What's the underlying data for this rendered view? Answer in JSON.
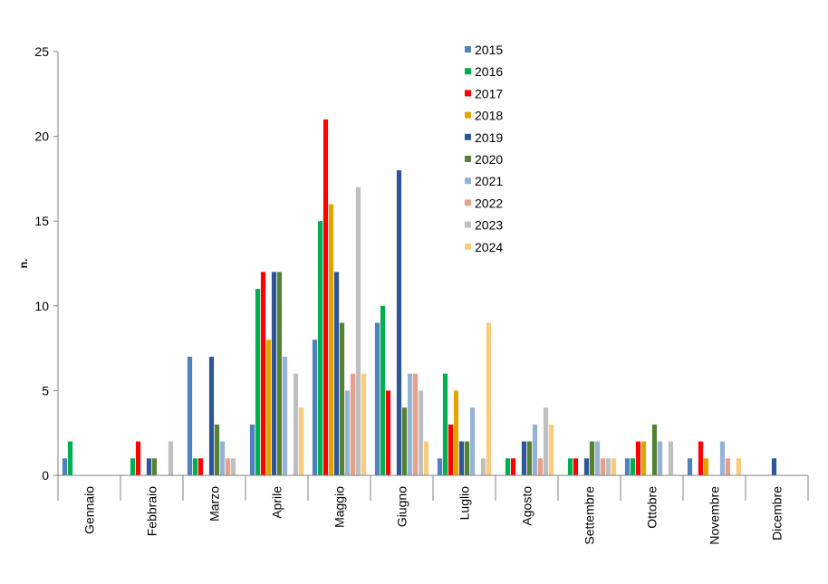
{
  "chart_data": {
    "type": "bar",
    "title": "",
    "xlabel": "",
    "ylabel": "n.",
    "ylim": [
      0,
      25
    ],
    "yticks": [
      "0",
      "5",
      "10",
      "15",
      "20",
      "25"
    ],
    "grid": false,
    "legend_position": "top-center",
    "categories": [
      "Gennaio",
      "Febbraio",
      "Marzo",
      "Aprile",
      "Maggio",
      "Giugno",
      "Luglio",
      "Agosto",
      "Settembre",
      "Ottobre",
      "Novembre",
      "Dicembre"
    ],
    "series": [
      {
        "name": "2015",
        "color": "#4f81bd",
        "values": [
          1,
          0,
          7,
          3,
          8,
          9,
          1,
          0,
          0,
          1,
          1,
          0
        ]
      },
      {
        "name": "2016",
        "color": "#00b050",
        "values": [
          2,
          1,
          1,
          11,
          15,
          10,
          6,
          1,
          1,
          1,
          0,
          0
        ]
      },
      {
        "name": "2017",
        "color": "#ff0000",
        "values": [
          0,
          2,
          1,
          12,
          21,
          5,
          3,
          1,
          1,
          2,
          2,
          0
        ]
      },
      {
        "name": "2018",
        "color": "#e1a500",
        "values": [
          0,
          0,
          0,
          8,
          16,
          0,
          5,
          0,
          0,
          2,
          1,
          0
        ]
      },
      {
        "name": "2019",
        "color": "#2e5597",
        "values": [
          0,
          1,
          7,
          12,
          12,
          18,
          2,
          2,
          1,
          0,
          0,
          1
        ]
      },
      {
        "name": "2020",
        "color": "#548235",
        "values": [
          0,
          1,
          3,
          12,
          9,
          4,
          2,
          2,
          2,
          3,
          0,
          0
        ]
      },
      {
        "name": "2021",
        "color": "#95b3d7",
        "values": [
          0,
          0,
          2,
          7,
          5,
          6,
          4,
          3,
          2,
          2,
          2,
          0
        ]
      },
      {
        "name": "2022",
        "color": "#e6a08a",
        "values": [
          0,
          0,
          1,
          0,
          6,
          6,
          0,
          1,
          1,
          0,
          1,
          0
        ]
      },
      {
        "name": "2023",
        "color": "#bfbfbf",
        "values": [
          0,
          2,
          1,
          6,
          17,
          5,
          1,
          4,
          1,
          2,
          0,
          0
        ]
      },
      {
        "name": "2024",
        "color": "#f9cb7a",
        "values": [
          0,
          0,
          0,
          4,
          6,
          2,
          9,
          3,
          1,
          0,
          1,
          0
        ]
      }
    ]
  }
}
